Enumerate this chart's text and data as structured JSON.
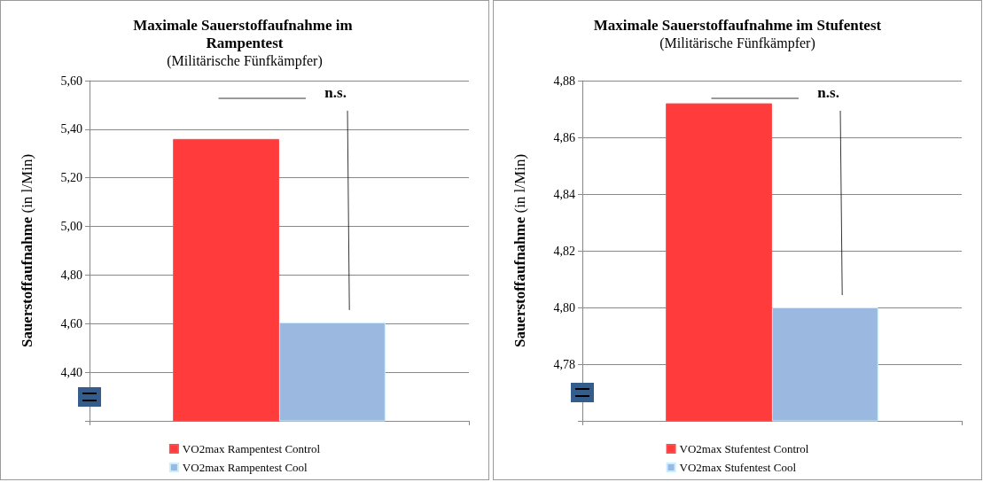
{
  "chart_data": [
    {
      "type": "bar",
      "title": "Maximale Sauerstoffaufnahme im Rampentest",
      "subtitle": "(Militärische Fünfkämpfer)",
      "ylabel": "Sauerstoffaufnahme (in l/Min)",
      "categories": [
        null
      ],
      "series": [
        {
          "name": "VO2max Rampentest Control",
          "color": "#ff3b3b",
          "values": [
            5.36
          ]
        },
        {
          "name": "VO2max Rampentest Cool",
          "color": "#9ab8e0",
          "values": [
            4.605
          ]
        }
      ],
      "ylim": [
        4.2,
        5.6
      ],
      "yticks": [
        {
          "value": 4.2,
          "label": null
        },
        {
          "value": 4.4,
          "label": "4,40"
        },
        {
          "value": 4.6,
          "label": "4,60"
        },
        {
          "value": 4.8,
          "label": "4,80"
        },
        {
          "value": 5.0,
          "label": "5,00"
        },
        {
          "value": 5.2,
          "label": "5,20"
        },
        {
          "value": 5.4,
          "label": "5,40"
        },
        {
          "value": 5.6,
          "label": "5,60"
        }
      ],
      "grid": "y",
      "legend": "bottom",
      "annotations": [
        "n.s."
      ]
    },
    {
      "type": "bar",
      "title": "Maximale Sauerstoffaufnahme im Stufentest",
      "subtitle": "(Militärische Fünfkämpfer)",
      "ylabel": "Sauerstoffaufnahme (in l/Min)",
      "categories": [
        null
      ],
      "series": [
        {
          "name": "VO2max Stufentest Control",
          "color": "#ff3b3b",
          "values": [
            4.872
          ]
        },
        {
          "name": "VO2max Stufentest Cool",
          "color": "#9ab8e0",
          "values": [
            4.8
          ]
        }
      ],
      "ylim": [
        4.76,
        4.88
      ],
      "yticks": [
        {
          "value": 4.76,
          "label": null
        },
        {
          "value": 4.78,
          "label": "4,78"
        },
        {
          "value": 4.8,
          "label": "4,80"
        },
        {
          "value": 4.82,
          "label": "4,82"
        },
        {
          "value": 4.84,
          "label": "4,84"
        },
        {
          "value": 4.86,
          "label": "4,86"
        },
        {
          "value": 4.88,
          "label": "4,88"
        }
      ],
      "grid": "y",
      "legend": "bottom",
      "annotations": [
        "n.s."
      ]
    }
  ]
}
